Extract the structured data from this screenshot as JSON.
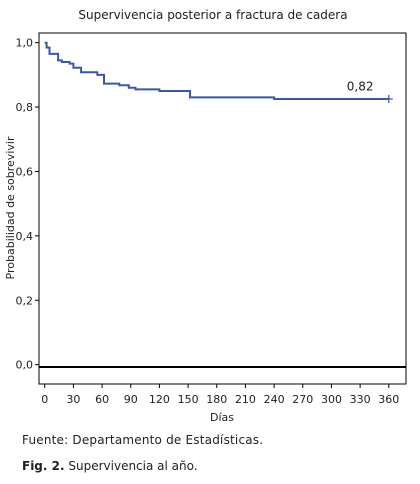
{
  "chart_data": {
    "type": "line",
    "title": "Supervivencia posterior a fractura de cadera",
    "xlabel": "Días",
    "ylabel": "Probabilidad de sobrevivir",
    "xlim": [
      -6,
      378
    ],
    "ylim": [
      -0.06,
      1.03
    ],
    "x_ticks": [
      0,
      30,
      60,
      90,
      120,
      150,
      180,
      210,
      240,
      270,
      300,
      330,
      360
    ],
    "x_tick_labels": [
      "0",
      "30",
      "60",
      "90",
      "120",
      "150",
      "180",
      "210",
      "240",
      "270",
      "300",
      "330",
      "360"
    ],
    "y_ticks": [
      0.0,
      0.2,
      0.4,
      0.6,
      0.8,
      1.0
    ],
    "y_tick_labels": [
      "0,0",
      "0,2",
      "0,4",
      "0,6",
      "0,8",
      "1,0"
    ],
    "grid": false,
    "line_color": "#3b57a6",
    "series": [
      {
        "step": true,
        "x": [
          0,
          2,
          2,
          5,
          5,
          14,
          14,
          18,
          18,
          26,
          26,
          30,
          30,
          38,
          38,
          55,
          55,
          62,
          62,
          78,
          78,
          88,
          88,
          95,
          95,
          120,
          120,
          152,
          152,
          240,
          240,
          360
        ],
        "y": [
          1.0,
          1.0,
          0.985,
          0.985,
          0.965,
          0.965,
          0.945,
          0.945,
          0.94,
          0.94,
          0.935,
          0.935,
          0.922,
          0.922,
          0.908,
          0.908,
          0.9,
          0.9,
          0.873,
          0.873,
          0.868,
          0.868,
          0.86,
          0.86,
          0.855,
          0.855,
          0.85,
          0.85,
          0.83,
          0.83,
          0.825,
          0.825
        ]
      }
    ],
    "censor_marks": [
      {
        "x": 360,
        "y": 0.825
      }
    ],
    "annotations": [
      {
        "x": 330,
        "y": 0.82,
        "text": "0,82"
      }
    ]
  },
  "footer": {
    "source": "Fuente: Departamento de Estadísticas.",
    "caption_label": "Fig. 2.",
    "caption_text": "Supervivencia al año."
  }
}
